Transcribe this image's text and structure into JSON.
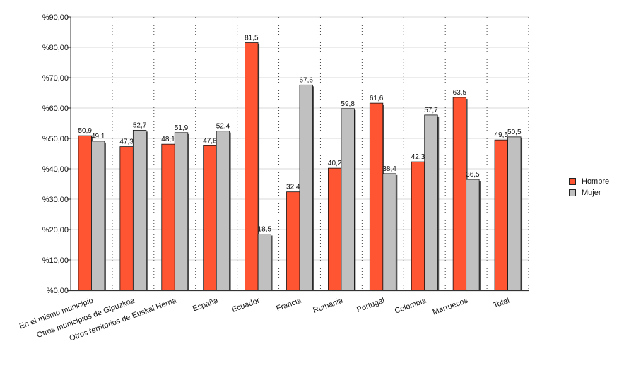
{
  "chart_data": {
    "type": "bar",
    "categories": [
      "En el mismo municipio",
      "Otros municipios de Gipuzkoa",
      "Otros territorios de Euskal Herria",
      "España",
      "Ecuador",
      "Francia",
      "Rumania",
      "Portugal",
      "Colombia",
      "Marruecos",
      "Total"
    ],
    "series": [
      {
        "name": "Hombre",
        "color": "#ff5533",
        "values": [
          50.9,
          47.3,
          48.1,
          47.6,
          81.5,
          32.4,
          40.2,
          61.6,
          42.3,
          63.5,
          49.5
        ],
        "labels": [
          "50,9",
          "47,3",
          "48,1",
          "47,6",
          "81,5",
          "32,4",
          "40,2",
          "61,6",
          "42,3",
          "63,5",
          "49,5"
        ]
      },
      {
        "name": "Mujer",
        "color": "#c0c0c0",
        "values": [
          49.1,
          52.7,
          51.9,
          52.4,
          18.5,
          67.6,
          59.8,
          38.4,
          57.7,
          36.5,
          50.5
        ],
        "labels": [
          "49,1",
          "52,7",
          "51,9",
          "52,4",
          "18,5",
          "67,6",
          "59,8",
          "38,4",
          "57,7",
          "36,5",
          "50,5"
        ]
      }
    ],
    "ylim": [
      0,
      90
    ],
    "yticks": [
      0,
      10,
      20,
      30,
      40,
      50,
      60,
      70,
      80,
      90
    ],
    "ytick_labels": [
      "%0,00",
      "%10,00",
      "%20,00",
      "%30,00",
      "%40,00",
      "%50,00",
      "%60,00",
      "%70,00",
      "%80,00",
      "%90,00"
    ],
    "grid": true,
    "legend_position": "right"
  }
}
